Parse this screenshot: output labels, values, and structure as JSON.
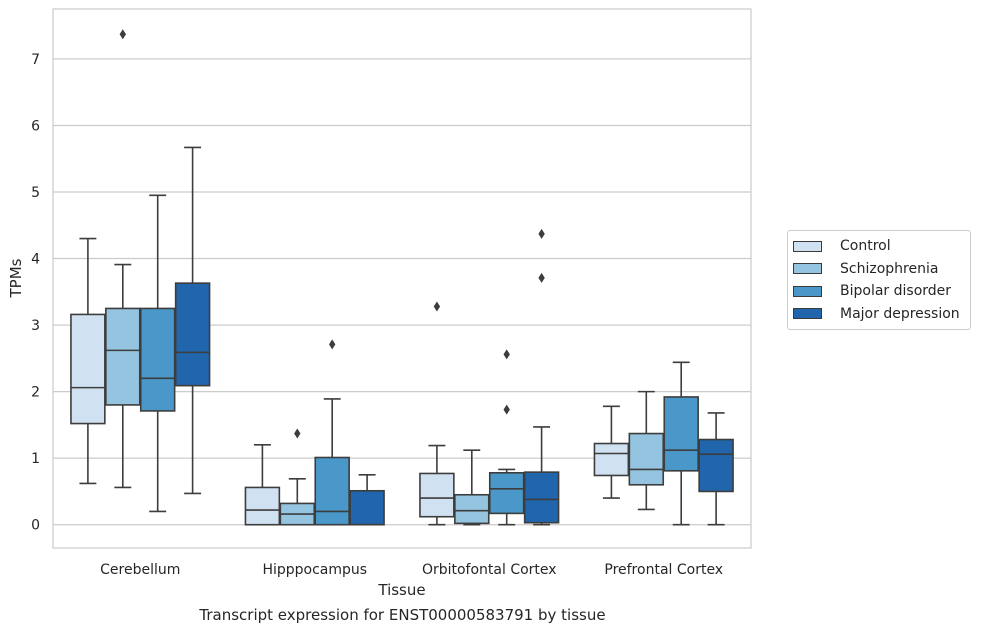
{
  "caption": "Transcript expression for ENST00000583791 by tissue",
  "chart_data": {
    "type": "box",
    "xlabel": "Tissue",
    "ylabel": "TPMs",
    "ylim": [
      -0.35,
      7.75
    ],
    "yticks": [
      0,
      1,
      2,
      3,
      4,
      5,
      6,
      7
    ],
    "grid": true,
    "legend_position": "right",
    "categories": [
      "Cerebellum",
      "Hipppocampus",
      "Orbitofontal Cortex",
      "Prefrontal Cortex"
    ],
    "series": [
      {
        "name": "Control",
        "color": "#d0e1f2",
        "boxes": [
          {
            "whisker_low": 0.62,
            "q1": 1.52,
            "median": 2.06,
            "q3": 3.16,
            "whisker_high": 4.3,
            "outliers": []
          },
          {
            "whisker_low": 0.0,
            "q1": 0.0,
            "median": 0.22,
            "q3": 0.56,
            "whisker_high": 1.2,
            "outliers": []
          },
          {
            "whisker_low": 0.0,
            "q1": 0.12,
            "median": 0.4,
            "q3": 0.77,
            "whisker_high": 1.19,
            "outliers": [
              3.28
            ]
          },
          {
            "whisker_low": 0.4,
            "q1": 0.74,
            "median": 1.07,
            "q3": 1.22,
            "whisker_high": 1.78,
            "outliers": []
          }
        ]
      },
      {
        "name": "Schizophrenia",
        "color": "#94c4df",
        "boxes": [
          {
            "whisker_low": 0.56,
            "q1": 1.8,
            "median": 2.62,
            "q3": 3.25,
            "whisker_high": 3.91,
            "outliers": [
              7.37
            ]
          },
          {
            "whisker_low": 0.0,
            "q1": 0.0,
            "median": 0.16,
            "q3": 0.32,
            "whisker_high": 0.69,
            "outliers": [
              1.37
            ]
          },
          {
            "whisker_low": 0.0,
            "q1": 0.02,
            "median": 0.21,
            "q3": 0.45,
            "whisker_high": 1.12,
            "outliers": []
          },
          {
            "whisker_low": 0.23,
            "q1": 0.6,
            "median": 0.83,
            "q3": 1.37,
            "whisker_high": 2.0,
            "outliers": []
          }
        ]
      },
      {
        "name": "Bipolar disorder",
        "color": "#4a98c9",
        "boxes": [
          {
            "whisker_low": 0.2,
            "q1": 1.71,
            "median": 2.2,
            "q3": 3.25,
            "whisker_high": 4.95,
            "outliers": []
          },
          {
            "whisker_low": 0.0,
            "q1": 0.0,
            "median": 0.2,
            "q3": 1.01,
            "whisker_high": 1.89,
            "outliers": [
              2.71
            ]
          },
          {
            "whisker_low": 0.0,
            "q1": 0.17,
            "median": 0.54,
            "q3": 0.78,
            "whisker_high": 0.83,
            "outliers": [
              1.73,
              2.56
            ]
          },
          {
            "whisker_low": 0.0,
            "q1": 0.81,
            "median": 1.12,
            "q3": 1.92,
            "whisker_high": 2.44,
            "outliers": []
          }
        ]
      },
      {
        "name": "Major depression",
        "color": "#2166ac",
        "boxes": [
          {
            "whisker_low": 0.47,
            "q1": 2.09,
            "median": 2.59,
            "q3": 3.63,
            "whisker_high": 5.67,
            "outliers": []
          },
          {
            "whisker_low": 0.0,
            "q1": 0.0,
            "median": 0.0,
            "q3": 0.51,
            "whisker_high": 0.75,
            "outliers": []
          },
          {
            "whisker_low": 0.0,
            "q1": 0.03,
            "median": 0.38,
            "q3": 0.79,
            "whisker_high": 1.47,
            "outliers": [
              3.71,
              4.37
            ]
          },
          {
            "whisker_low": 0.0,
            "q1": 0.5,
            "median": 1.06,
            "q3": 1.28,
            "whisker_high": 1.68,
            "outliers": []
          }
        ]
      }
    ]
  }
}
